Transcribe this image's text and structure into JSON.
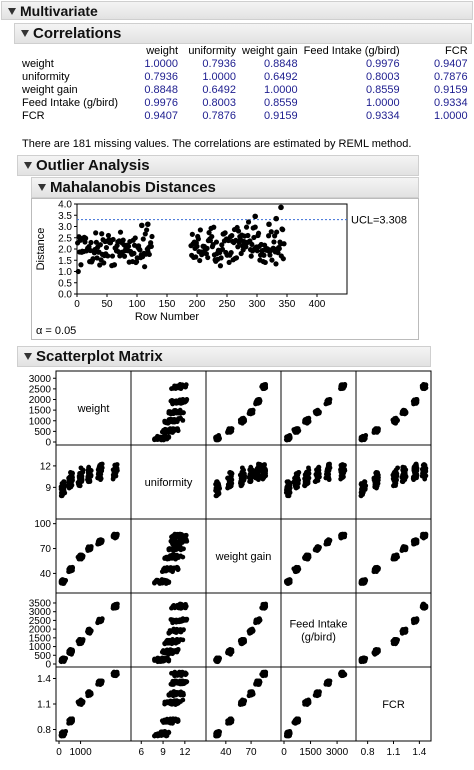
{
  "headers": {
    "multivariate": "Multivariate",
    "correlations": "Correlations",
    "outlier_analysis": "Outlier Analysis",
    "mahalanobis": "Mahalanobis Distances",
    "scatterplot_matrix": "Scatterplot Matrix"
  },
  "correlations": {
    "columns": [
      "weight",
      "uniformity",
      "weight gain",
      "Feed Intake (g/bird)",
      "FCR"
    ],
    "rows": [
      {
        "label": "weight",
        "values": [
          "1.0000",
          "0.7936",
          "0.8848",
          "0.9976",
          "0.9407"
        ]
      },
      {
        "label": "uniformity",
        "values": [
          "0.7936",
          "1.0000",
          "0.6492",
          "0.8003",
          "0.7876"
        ]
      },
      {
        "label": "weight gain",
        "values": [
          "0.8848",
          "0.6492",
          "1.0000",
          "0.8559",
          "0.9159"
        ]
      },
      {
        "label": "Feed Intake (g/bird)",
        "values": [
          "0.9976",
          "0.8003",
          "0.8559",
          "1.0000",
          "0.9334"
        ]
      },
      {
        "label": "FCR",
        "values": [
          "0.9407",
          "0.7876",
          "0.9159",
          "0.9334",
          "1.0000"
        ]
      }
    ],
    "note": "There are 181 missing values. The correlations are estimated by REML method."
  },
  "alpha_label": "α = 0.05",
  "colors": {
    "points": "#000000",
    "ucl_line": "#3a6fd8",
    "values_text": "#1d1d8f"
  },
  "chart_data": [
    {
      "type": "scatter",
      "title": "Mahalanobis Distances",
      "xlabel": "Row Number",
      "ylabel": "Distance",
      "xlim": [
        0,
        450
      ],
      "ylim": [
        0,
        4.0
      ],
      "x_ticks": [
        0,
        50,
        100,
        150,
        200,
        250,
        300,
        350,
        400
      ],
      "y_ticks": [
        "0.0",
        "0.5",
        "1.0",
        "1.5",
        "2.0",
        "2.5",
        "3.0",
        "3.5",
        "4.0"
      ],
      "reference_line": {
        "label": "UCL=3.308",
        "value": 3.308
      },
      "clusters": [
        {
          "x_range": [
            1,
            125
          ],
          "y_center": 2.0,
          "y_spread": 0.55
        },
        {
          "x_range": [
            190,
            345
          ],
          "y_center": 2.15,
          "y_spread": 0.65
        }
      ],
      "notable_points": [
        {
          "x": 108,
          "y": 3.05
        },
        {
          "x": 118,
          "y": 3.1
        },
        {
          "x": 297,
          "y": 3.45
        },
        {
          "x": 332,
          "y": 3.35
        },
        {
          "x": 340,
          "y": 3.85
        },
        {
          "x": 320,
          "y": 3.1
        }
      ]
    },
    {
      "type": "scatter",
      "title": "Scatterplot Matrix",
      "variables": [
        {
          "name": "weight",
          "label": "weight",
          "range": [
            0,
            3200
          ],
          "ticks": [
            0,
            500,
            1000,
            1500,
            2000,
            2500,
            3000
          ],
          "bottom_ticks": [
            0,
            1000
          ]
        },
        {
          "name": "uniformity",
          "label": "uniformity",
          "range": [
            5,
            14.5
          ],
          "ticks": [
            9,
            12
          ],
          "bottom_ticks": [
            6,
            9,
            12
          ]
        },
        {
          "name": "weight_gain",
          "label": "weight gain",
          "range": [
            20,
            102
          ],
          "ticks": [
            40,
            70,
            100
          ],
          "bottom_ticks": [
            40,
            70
          ]
        },
        {
          "name": "feed_intake",
          "label": "Feed Intake (g/bird)",
          "range": [
            0,
            3900
          ],
          "ticks": [
            0,
            500,
            1000,
            1500,
            2000,
            2500,
            3000,
            3500
          ],
          "bottom_ticks": [
            0,
            1500,
            3000
          ]
        },
        {
          "name": "fcr",
          "label": "FCR",
          "range": [
            0.7,
            1.5
          ],
          "ticks": [
            0.8,
            1.1,
            1.4
          ],
          "bottom_ticks": [
            0.8,
            1.1,
            1.4
          ]
        }
      ],
      "groups": [
        {
          "weight": 200,
          "uniformity": 9,
          "weight_gain": 30,
          "feed_intake": 250,
          "fcr": 0.75
        },
        {
          "weight": 550,
          "uniformity": 10,
          "weight_gain": 45,
          "feed_intake": 700,
          "fcr": 0.9
        },
        {
          "weight": 1000,
          "uniformity": 10.5,
          "weight_gain": 60,
          "feed_intake": 1300,
          "fcr": 1.12
        },
        {
          "weight": 1400,
          "uniformity": 10.8,
          "weight_gain": 70,
          "feed_intake": 1900,
          "fcr": 1.22
        },
        {
          "weight": 1900,
          "uniformity": 11,
          "weight_gain": 78,
          "feed_intake": 2500,
          "fcr": 1.35
        },
        {
          "weight": 2600,
          "uniformity": 11.2,
          "weight_gain": 85,
          "feed_intake": 3300,
          "fcr": 1.45
        }
      ]
    }
  ]
}
